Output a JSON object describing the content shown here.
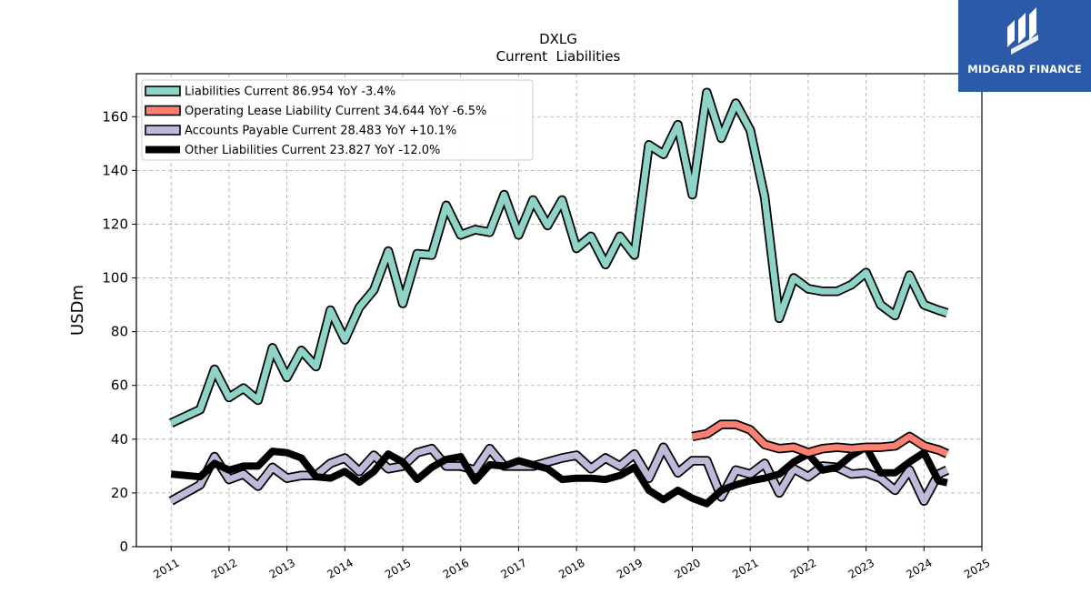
{
  "chart_data": {
    "type": "line",
    "title": "DXLG",
    "subtitle": "Current  Liabilities",
    "ylabel": "USDm",
    "xlabel": "",
    "xlim": [
      2010.4,
      2025.0
    ],
    "ylim": [
      0,
      176
    ],
    "yticks": [
      0,
      20,
      40,
      60,
      80,
      100,
      120,
      140,
      160
    ],
    "xticks": [
      "2011",
      "2012",
      "2013",
      "2014",
      "2015",
      "2016",
      "2017",
      "2018",
      "2019",
      "2020",
      "2021",
      "2022",
      "2023",
      "2024",
      "2025"
    ],
    "grid": true,
    "legend_position": "top-left",
    "series": [
      {
        "name": "Liabilities Current  86.954 YoY -3.4%",
        "color": "#8dd3c7",
        "outline": true,
        "width": 7,
        "x": [
          2011.0,
          2011.25,
          2011.5,
          2011.75,
          2012.0,
          2012.25,
          2012.5,
          2012.75,
          2013.0,
          2013.25,
          2013.5,
          2013.75,
          2014.0,
          2014.25,
          2014.5,
          2014.75,
          2015.0,
          2015.25,
          2015.5,
          2015.75,
          2016.0,
          2016.25,
          2016.5,
          2016.75,
          2017.0,
          2017.25,
          2017.5,
          2017.75,
          2018.0,
          2018.25,
          2018.5,
          2018.75,
          2019.0,
          2019.25,
          2019.5,
          2019.75,
          2020.0,
          2020.25,
          2020.5,
          2020.75,
          2021.0,
          2021.25,
          2021.5,
          2021.75,
          2022.0,
          2022.25,
          2022.5,
          2022.75,
          2023.0,
          2023.25,
          2023.5,
          2023.75,
          2024.0,
          2024.25,
          2024.4
        ],
        "values": [
          46,
          48.5,
          51,
          66,
          55.5,
          59,
          54.5,
          74,
          63,
          73,
          67,
          88,
          77,
          89,
          95.5,
          110,
          90.5,
          109,
          108.5,
          127,
          116,
          118,
          117,
          131,
          116,
          129,
          119.5,
          129,
          111,
          115.5,
          105,
          115.5,
          108.5,
          149.5,
          146,
          157,
          131,
          169,
          152,
          165,
          155,
          130,
          85,
          100,
          96,
          95,
          95,
          97.5,
          102,
          90,
          86,
          101,
          90,
          88,
          87
        ]
      },
      {
        "name": "Operating Lease Liability Current  34.644 YoY -6.5%",
        "color": "#fb8072",
        "outline": true,
        "width": 7,
        "x": [
          2020.0,
          2020.25,
          2020.5,
          2020.75,
          2021.0,
          2021.25,
          2021.5,
          2021.75,
          2022.0,
          2022.25,
          2022.5,
          2022.75,
          2023.0,
          2023.25,
          2023.5,
          2023.75,
          2024.0,
          2024.25,
          2024.4
        ],
        "values": [
          41,
          42,
          45.5,
          45.5,
          43.5,
          38,
          36.5,
          37,
          35,
          36.5,
          37,
          36.5,
          37,
          37,
          37.5,
          41,
          37.5,
          36,
          34.6
        ]
      },
      {
        "name": "Accounts Payable Current  28.483 YoY +10.1%",
        "color": "#bebada",
        "outline": true,
        "width": 7,
        "x": [
          2011.0,
          2011.25,
          2011.5,
          2011.75,
          2012.0,
          2012.25,
          2012.5,
          2012.75,
          2013.0,
          2013.25,
          2013.5,
          2013.75,
          2014.0,
          2014.25,
          2014.5,
          2014.75,
          2015.0,
          2015.25,
          2015.5,
          2015.75,
          2016.0,
          2016.25,
          2016.5,
          2016.75,
          2017.0,
          2017.25,
          2017.5,
          2017.75,
          2018.0,
          2018.25,
          2018.5,
          2018.75,
          2019.0,
          2019.25,
          2019.5,
          2019.75,
          2020.0,
          2020.25,
          2020.5,
          2020.75,
          2021.0,
          2021.25,
          2021.5,
          2021.75,
          2022.0,
          2022.25,
          2022.5,
          2022.75,
          2023.0,
          2023.25,
          2023.5,
          2023.75,
          2024.0,
          2024.25,
          2024.4
        ],
        "values": [
          17,
          20,
          23,
          33.5,
          25,
          27,
          22.5,
          29.5,
          25.5,
          26.5,
          26.5,
          31,
          33,
          28,
          34,
          29,
          30,
          35,
          36.5,
          30,
          30,
          28.5,
          36.5,
          30,
          30,
          30,
          31.5,
          33,
          34,
          29,
          33,
          30,
          34.5,
          25.5,
          37,
          27.5,
          32,
          32,
          18.5,
          28.5,
          27,
          31,
          20,
          29,
          26,
          30,
          29.5,
          27,
          27.5,
          25.5,
          21,
          28.5,
          17,
          27,
          28.5
        ]
      },
      {
        "name": "Other Liabilities Current  23.827 YoY -12.0%",
        "color": "#000000",
        "outline": false,
        "width": 8,
        "x": [
          2011.0,
          2011.25,
          2011.5,
          2011.75,
          2012.0,
          2012.25,
          2012.5,
          2012.75,
          2013.0,
          2013.25,
          2013.5,
          2013.75,
          2014.0,
          2014.25,
          2014.5,
          2014.75,
          2015.0,
          2015.25,
          2015.5,
          2015.75,
          2016.0,
          2016.25,
          2016.5,
          2016.75,
          2017.0,
          2017.25,
          2017.5,
          2017.75,
          2018.0,
          2018.25,
          2018.5,
          2018.75,
          2019.0,
          2019.25,
          2019.5,
          2019.75,
          2020.0,
          2020.25,
          2020.5,
          2020.75,
          2021.0,
          2021.25,
          2021.5,
          2021.75,
          2022.0,
          2022.25,
          2022.5,
          2022.75,
          2023.0,
          2023.25,
          2023.5,
          2023.75,
          2024.0,
          2024.25,
          2024.4
        ],
        "values": [
          27,
          26.5,
          26,
          31,
          28.5,
          30,
          30,
          35.5,
          35,
          33,
          26,
          25.5,
          28,
          24,
          28,
          34.5,
          31.5,
          25,
          29.5,
          32.5,
          33.5,
          24.5,
          30.5,
          30,
          32,
          30.5,
          29,
          25,
          25.5,
          25.5,
          25,
          26.5,
          29.5,
          21,
          17.5,
          21,
          18,
          16,
          21,
          23,
          24.5,
          25.5,
          27,
          31.5,
          34.5,
          28.5,
          29.5,
          34,
          37,
          27.5,
          27.5,
          31.5,
          35,
          24.5,
          23.8
        ]
      }
    ]
  },
  "logo": {
    "text": "MIDGARD FINANCE",
    "icon": "midgard-logo-icon"
  }
}
